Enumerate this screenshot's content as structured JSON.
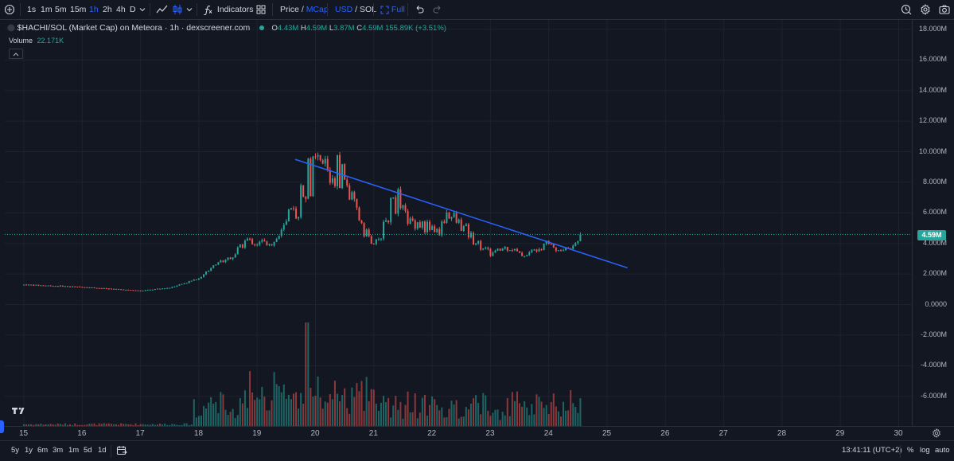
{
  "toolbar": {
    "intervals": [
      "1s",
      "1m",
      "5m",
      "15m",
      "1h",
      "2h",
      "4h",
      "D"
    ],
    "active_interval": "1h",
    "indicators_label": "Indicators",
    "price_label": "Price",
    "mcap_label": "MCap",
    "usd_label": "USD",
    "sol_label": "SOL",
    "full_label": "Full",
    "slash": "/"
  },
  "legend": {
    "symbol": "$HACHI/SOL (Market Cap) on Meteora · 1h · dexscreener.com",
    "o_label": "O",
    "o_value": "4.43M",
    "h_label": "H",
    "h_value": "4.59M",
    "l_label": "L",
    "l_value": "3.87M",
    "c_label": "C",
    "c_value": "4.59M",
    "change": "155.89K (+3.51%)",
    "volume_label": "Volume",
    "volume_value": "22.171K"
  },
  "last_price_badge": "4.59M",
  "price_axis_labels": [
    "18.000M",
    "16.000M",
    "14.000M",
    "12.000M",
    "10.000M",
    "8.000M",
    "6.000M",
    "4.000M",
    "2.000M",
    "0.0000",
    "-2.000M",
    "-4.000M",
    "-6.000M"
  ],
  "time_axis_labels": [
    "15",
    "16",
    "17",
    "18",
    "19",
    "20",
    "21",
    "22",
    "23",
    "24",
    "25",
    "26",
    "27",
    "28",
    "29",
    "30"
  ],
  "bottom": {
    "ranges": [
      "5y",
      "1y",
      "6m",
      "3m",
      "1m",
      "5d",
      "1d"
    ],
    "clock": "13:41:11 (UTC+2)",
    "percent": "%",
    "log": "log",
    "auto": "auto"
  },
  "colors": {
    "up": "#26a69a",
    "down": "#ef5350",
    "trendline": "#2962ff",
    "background": "#131722",
    "accent": "#2962ff"
  },
  "chart_data": {
    "type": "candlestick",
    "ylim": [
      -7000000,
      18500000
    ],
    "x_start_day": 15,
    "x_end_day": 30,
    "last_price": 4590000,
    "key_points": [
      {
        "day": 15.0,
        "price": 1300000
      },
      {
        "day": 16.0,
        "price": 1150000
      },
      {
        "day": 17.0,
        "price": 900000
      },
      {
        "day": 17.5,
        "price": 1100000
      },
      {
        "day": 18.0,
        "price": 1700000
      },
      {
        "day": 18.3,
        "price": 2700000
      },
      {
        "day": 18.6,
        "price": 3200000
      },
      {
        "day": 18.8,
        "price": 4200000
      },
      {
        "day": 19.0,
        "price": 4000000
      },
      {
        "day": 19.3,
        "price": 4100000
      },
      {
        "day": 19.5,
        "price": 5200000
      },
      {
        "day": 19.7,
        "price": 6500000
      },
      {
        "day": 19.85,
        "price": 8400000
      },
      {
        "day": 20.1,
        "price": 9000000
      },
      {
        "day": 20.3,
        "price": 8600000
      },
      {
        "day": 20.5,
        "price": 8200000
      },
      {
        "day": 20.65,
        "price": 6500000
      },
      {
        "day": 20.85,
        "price": 5000000
      },
      {
        "day": 21.0,
        "price": 3700000
      },
      {
        "day": 21.15,
        "price": 4800000
      },
      {
        "day": 21.35,
        "price": 7200000
      },
      {
        "day": 21.6,
        "price": 5500000
      },
      {
        "day": 21.9,
        "price": 5300000
      },
      {
        "day": 22.1,
        "price": 4600000
      },
      {
        "day": 22.25,
        "price": 6000000
      },
      {
        "day": 22.5,
        "price": 5100000
      },
      {
        "day": 22.75,
        "price": 4200000
      },
      {
        "day": 23.0,
        "price": 3300000
      },
      {
        "day": 23.3,
        "price": 3800000
      },
      {
        "day": 23.55,
        "price": 3200000
      },
      {
        "day": 23.8,
        "price": 3600000
      },
      {
        "day": 23.95,
        "price": 4300000
      },
      {
        "day": 24.15,
        "price": 3500000
      },
      {
        "day": 24.4,
        "price": 3700000
      },
      {
        "day": 24.55,
        "price": 4590000
      }
    ],
    "trendline": {
      "start": {
        "day": 19.65,
        "price": 9500000
      },
      "end": {
        "day": 25.35,
        "price": 2400000
      }
    },
    "volume": {
      "peak_day": 19.85,
      "label": "Volume"
    }
  }
}
